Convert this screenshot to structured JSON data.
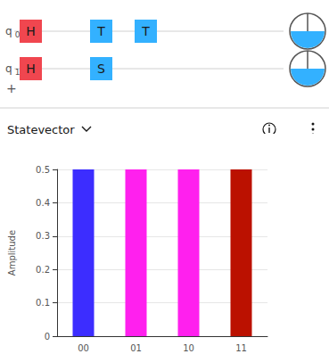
{
  "circuit": {
    "qubits": [
      {
        "label": "q",
        "index": "0",
        "gates": [
          "H",
          "T",
          "T"
        ],
        "probability": 0.5
      },
      {
        "label": "q",
        "index": "1",
        "gates": [
          "H",
          "S"
        ],
        "probability": 0.5
      }
    ],
    "add_label": "+"
  },
  "panel": {
    "title": "Statevector"
  },
  "chart_data": {
    "type": "bar",
    "y_label": "Amplitude",
    "categories": [
      "00",
      "01",
      "10",
      "11"
    ],
    "values": [
      0.5,
      0.5,
      0.5,
      0.5
    ],
    "colors": [
      "#3c2dff",
      "#ff20ee",
      "#ff20ee",
      "#bb1100"
    ],
    "ylim": [
      0,
      0.5
    ],
    "yticks": [
      0,
      0.1,
      0.2,
      0.3,
      0.4,
      0.5
    ],
    "grid": true
  }
}
